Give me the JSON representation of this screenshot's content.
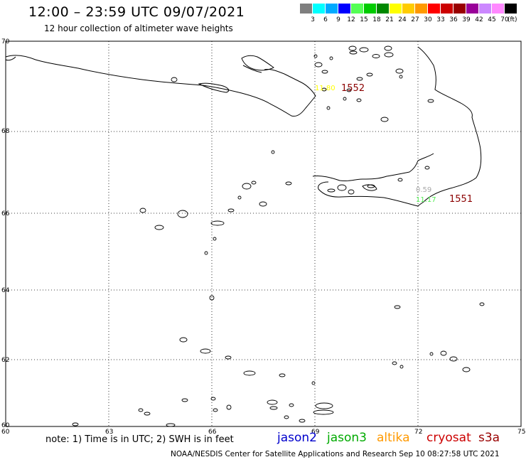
{
  "header": {
    "title": "12:00 – 23:59 UTC 09/07/2021",
    "subtitle": "12 hour collection of altimeter wave heights"
  },
  "colorbar": {
    "unit": "(ft)",
    "colors": [
      "#7f7f7f",
      "#00ffff",
      "#00aaff",
      "#0000ff",
      "#55ff55",
      "#00cc00",
      "#008800",
      "#ffff00",
      "#ffcc00",
      "#ff9900",
      "#ff0000",
      "#cc0000",
      "#990000",
      "#990099",
      "#cc88ff",
      "#ff88ff",
      "#000000"
    ],
    "labels": [
      "3",
      "6",
      "9",
      "12",
      "15",
      "18",
      "21",
      "24",
      "27",
      "30",
      "33",
      "36",
      "39",
      "42",
      "45",
      "70"
    ]
  },
  "map": {
    "lat_labels": [
      "70",
      "68",
      "66",
      "64",
      "62",
      "60"
    ],
    "lon_labels": [
      "60",
      "63",
      "66",
      "69",
      "72",
      "75"
    ],
    "observations": [
      {
        "value": "11.80",
        "color": "#ffff00",
        "track": "1552",
        "track_color": "#8b0000"
      },
      {
        "value": "0.59",
        "color": "#aaaaaa"
      },
      {
        "value": "11.17",
        "color": "#55ee55",
        "track": "1551",
        "track_color": "#8b0000"
      }
    ]
  },
  "footer": {
    "note": "note:  1) Time is in UTC;  2) SWH is in feet",
    "satellites": [
      {
        "name": "jason2",
        "color": "#0000cc"
      },
      {
        "name": "jason3",
        "color": "#00aa00"
      },
      {
        "name": "altika",
        "color": "#ff9900"
      },
      {
        "name": "cryosat",
        "color": "#cc0000"
      },
      {
        "name": "s3a",
        "color": "#990000"
      }
    ],
    "credit": "NOAA/NESDIS Center for Satellite Applications and Research    Sep 10 08:27:58 UTC 2021"
  }
}
